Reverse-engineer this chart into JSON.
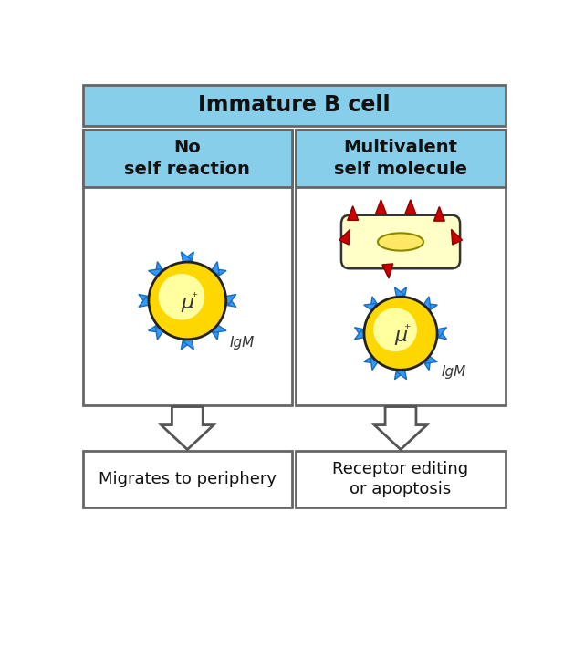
{
  "title": "Immature B cell",
  "title_bg": "#87CEEB",
  "left_header": "No\nself reaction",
  "right_header": "Multivalent\nself molecule",
  "header_bg": "#87CEEB",
  "left_label": "IgM",
  "right_label": "IgM",
  "left_outcome": "Migrates to periphery",
  "right_outcome": "Receptor editing\nor apoptosis",
  "cell_outer_color": "#FFD700",
  "cell_outer_edge": "#FFD700",
  "cell_gradient_inner": "#FFFFA0",
  "cell_border_color": "#222222",
  "antibody_color": "#1B6CB5",
  "antibody_fill": "#3399FF",
  "self_molecule_fill": "#FFFFC8",
  "self_molecule_edge": "#AAAAAA",
  "self_molecule_inner_fill": "#FFE866",
  "self_molecule_inner_edge": "#999900",
  "triangle_color": "#CC0000",
  "triangle_edge": "#880000",
  "background_color": "#FFFFFF",
  "box_border_color": "#666666",
  "arrow_fill": "#FFFFFF",
  "arrow_edge": "#555555",
  "mu_text": "μ",
  "plus_text": "⁺",
  "title_fontsize": 17,
  "header_fontsize": 14,
  "label_fontsize": 11,
  "outcome_fontsize": 13
}
